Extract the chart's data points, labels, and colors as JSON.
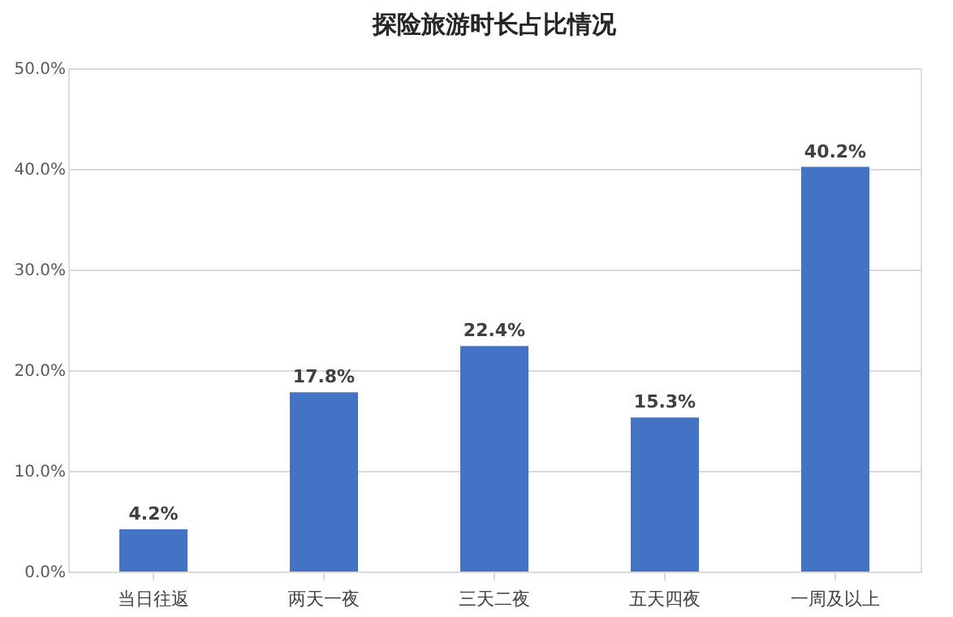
{
  "chart_data": {
    "type": "bar",
    "title": "探险旅游时长占比情况",
    "categories": [
      "当日往返",
      "两天一夜",
      "三天二夜",
      "五天四夜",
      "一周及以上"
    ],
    "values": [
      4.2,
      17.8,
      22.4,
      15.3,
      40.2
    ],
    "value_labels": [
      "4.2%",
      "17.8%",
      "22.4%",
      "15.3%",
      "40.2%"
    ],
    "color": "#4472c4",
    "ylim": [
      0,
      50
    ],
    "yticks": [
      {
        "value": 0,
        "label": "0.0%"
      },
      {
        "value": 10,
        "label": "10.0%"
      },
      {
        "value": 20,
        "label": "20.0%"
      },
      {
        "value": 30,
        "label": "30.0%"
      },
      {
        "value": 40,
        "label": "40.0%"
      },
      {
        "value": 50,
        "label": "50.0%"
      }
    ],
    "grid": "y"
  }
}
